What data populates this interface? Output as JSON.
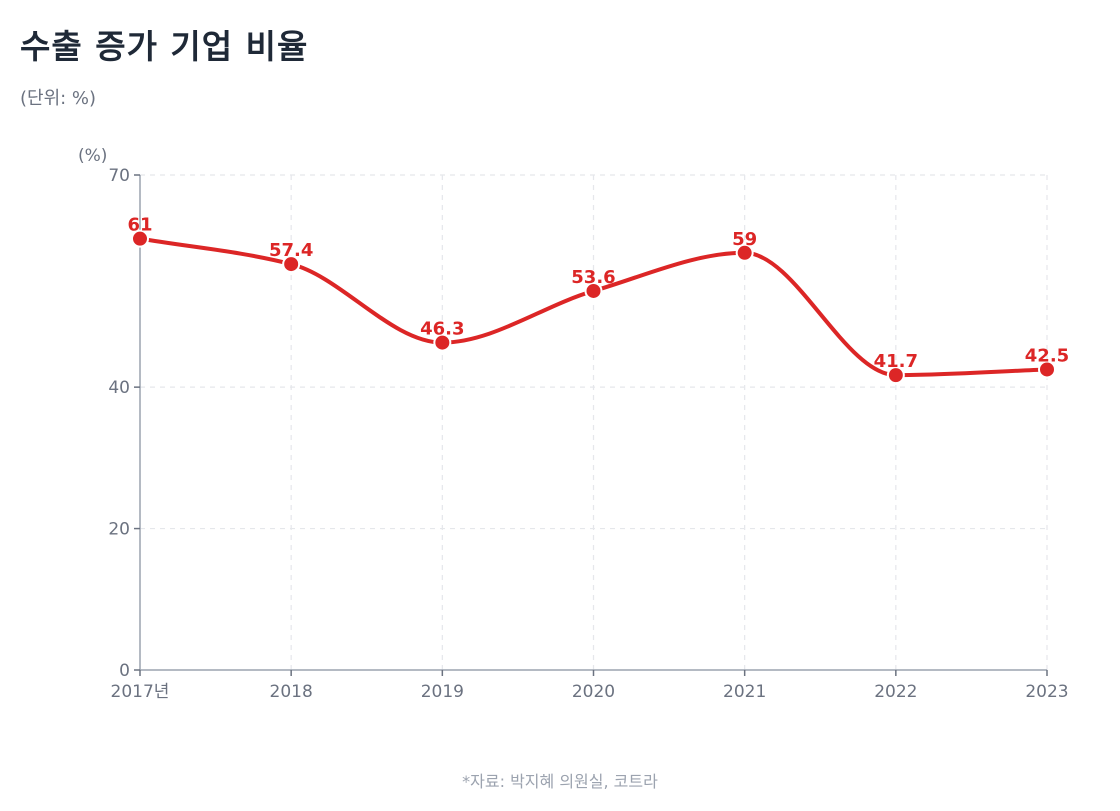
{
  "header": {
    "title": "수출 증가 기업 비율",
    "subtitle": "(단위: %)"
  },
  "footer": {
    "source": "*자료: 박지혜 의원실, 코트라"
  },
  "colors": {
    "line": "#dc2626",
    "axis": "#9ca3af",
    "grid": "#e5e7eb",
    "tick_text": "#6b7280"
  },
  "chart_data": {
    "type": "line",
    "title": "수출 증가 기업 비율",
    "subtitle": "(단위: %)",
    "xlabel": "",
    "ylabel": "(%)",
    "categories": [
      "2017년",
      "2018",
      "2019",
      "2020",
      "2021",
      "2022",
      "2023"
    ],
    "series": [
      {
        "name": "수출 증가 기업 비율",
        "values": [
          61,
          57.4,
          46.3,
          53.6,
          59,
          41.7,
          42.5
        ]
      }
    ],
    "data_labels": [
      "61",
      "57.4",
      "46.3",
      "53.6",
      "59",
      "41.7",
      "42.5"
    ],
    "yticks": [
      0,
      20,
      40,
      70
    ],
    "ylim": [
      0,
      70
    ],
    "grid": true,
    "legend": "none",
    "curve": "smooth",
    "annotation": "*자료: 박지혜 의원실, 코트라"
  }
}
